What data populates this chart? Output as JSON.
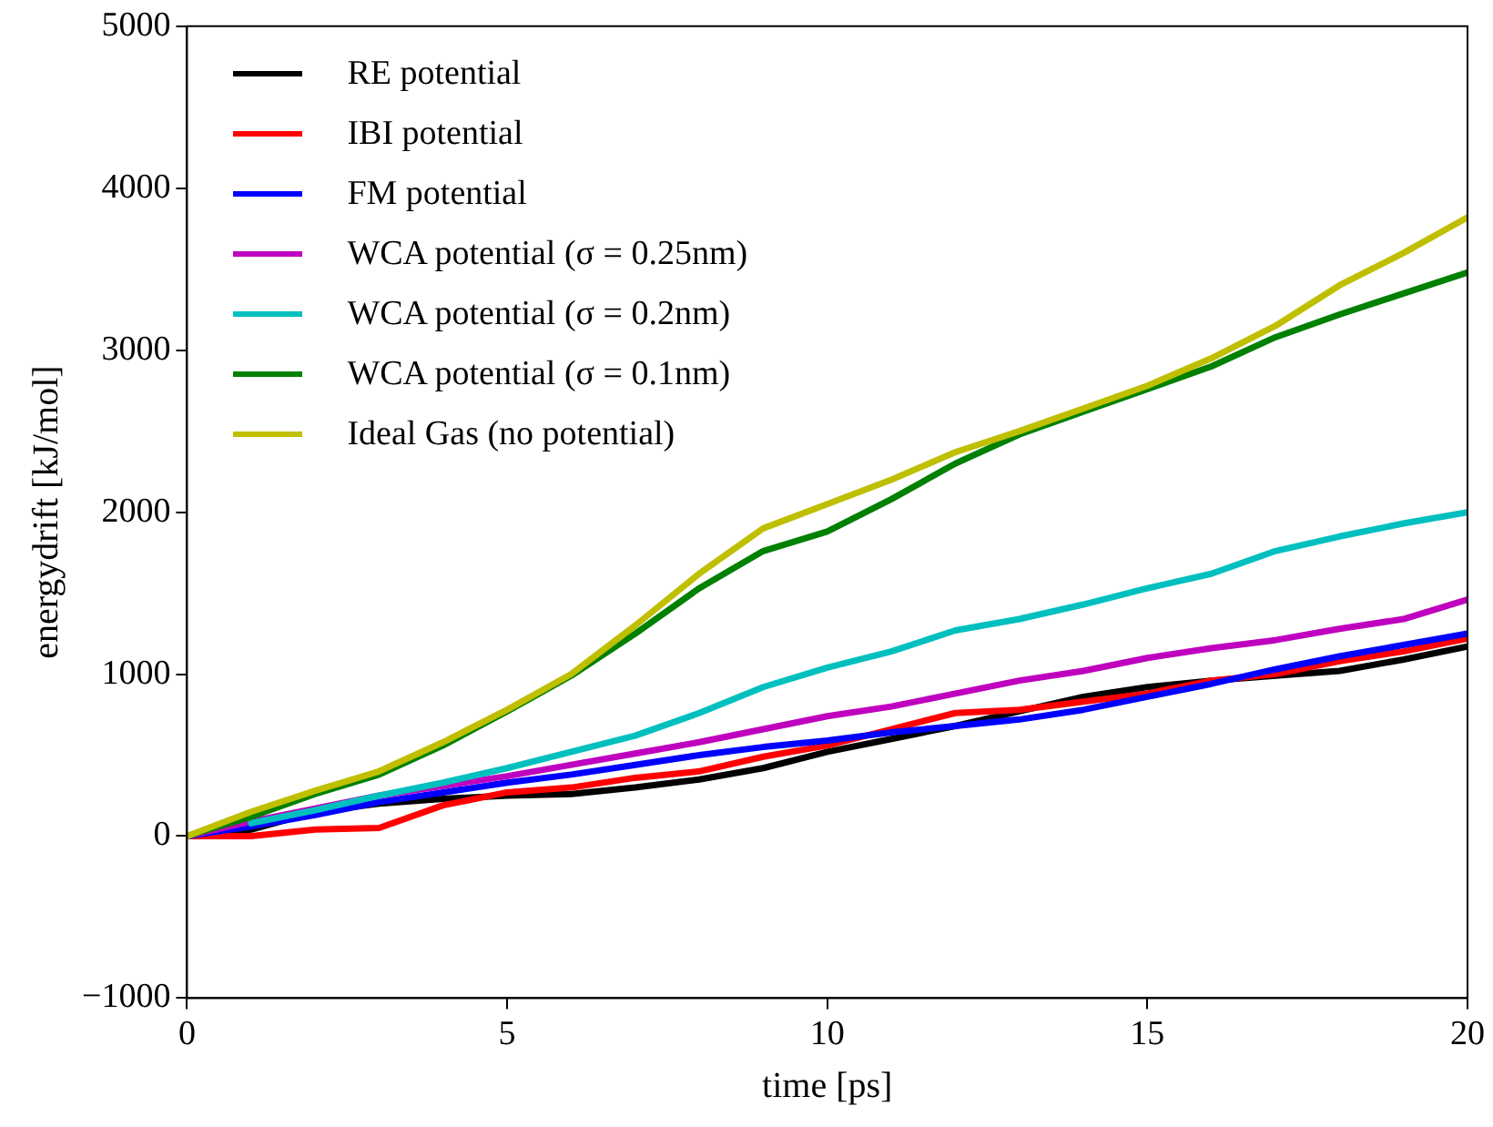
{
  "chart_data": {
    "type": "line",
    "xlabel": "time [ps]",
    "ylabel": "energydrift [kJ/mol]",
    "x": [
      0,
      1,
      2,
      3,
      4,
      5,
      6,
      7,
      8,
      9,
      10,
      11,
      12,
      13,
      14,
      15,
      16,
      17,
      18,
      19,
      20
    ],
    "xlim": [
      0,
      20
    ],
    "xticks": [
      0,
      5,
      10,
      15,
      20
    ],
    "ylim": [
      -1000,
      5000
    ],
    "yticks": [
      -1000,
      0,
      1000,
      2000,
      3000,
      4000,
      5000
    ],
    "grid": false,
    "legend": "top left",
    "marker": "none",
    "line_style": "solid",
    "series": [
      {
        "name": "RE potential",
        "color": "#000000",
        "values": [
          0,
          40,
          150,
          200,
          230,
          250,
          260,
          300,
          350,
          420,
          520,
          600,
          680,
          770,
          860,
          920,
          960,
          990,
          1020,
          1090,
          1170
        ]
      },
      {
        "name": "IBI potential",
        "color": "#ff0000",
        "values": [
          0,
          0,
          40,
          50,
          190,
          270,
          300,
          360,
          400,
          490,
          560,
          660,
          760,
          780,
          830,
          880,
          960,
          1000,
          1080,
          1140,
          1220
        ]
      },
      {
        "name": "FM potential",
        "color": "#0000ff",
        "values": [
          0,
          60,
          130,
          210,
          270,
          330,
          380,
          440,
          500,
          550,
          590,
          640,
          680,
          720,
          780,
          860,
          940,
          1030,
          1110,
          1180,
          1250
        ]
      },
      {
        "name": "WCA potential (σ = 0.25nm)",
        "color": "#bf00bf",
        "values": [
          0,
          90,
          170,
          250,
          310,
          370,
          440,
          510,
          580,
          660,
          740,
          800,
          880,
          960,
          1020,
          1100,
          1160,
          1210,
          1280,
          1340,
          1460
        ]
      },
      {
        "name": "WCA potential (σ = 0.2nm)",
        "color": "#00bfbf",
        "values": [
          null,
          80,
          160,
          250,
          330,
          420,
          520,
          620,
          760,
          920,
          1040,
          1140,
          1270,
          1340,
          1430,
          1530,
          1620,
          1760,
          1850,
          1930,
          2000
        ]
      },
      {
        "name": "WCA potential (σ = 0.1nm)",
        "color": "#008000",
        "values": [
          0,
          120,
          260,
          380,
          560,
          770,
          990,
          1250,
          1530,
          1760,
          1880,
          2080,
          2300,
          2480,
          2620,
          2760,
          2900,
          3080,
          3220,
          3350,
          3480
        ]
      },
      {
        "name": "Ideal Gas (no potential)",
        "color": "#bfbf00",
        "values": [
          0,
          150,
          280,
          400,
          580,
          780,
          1000,
          1300,
          1620,
          1900,
          2050,
          2200,
          2370,
          2500,
          2640,
          2780,
          2950,
          3150,
          3400,
          3600,
          3820
        ]
      }
    ]
  }
}
